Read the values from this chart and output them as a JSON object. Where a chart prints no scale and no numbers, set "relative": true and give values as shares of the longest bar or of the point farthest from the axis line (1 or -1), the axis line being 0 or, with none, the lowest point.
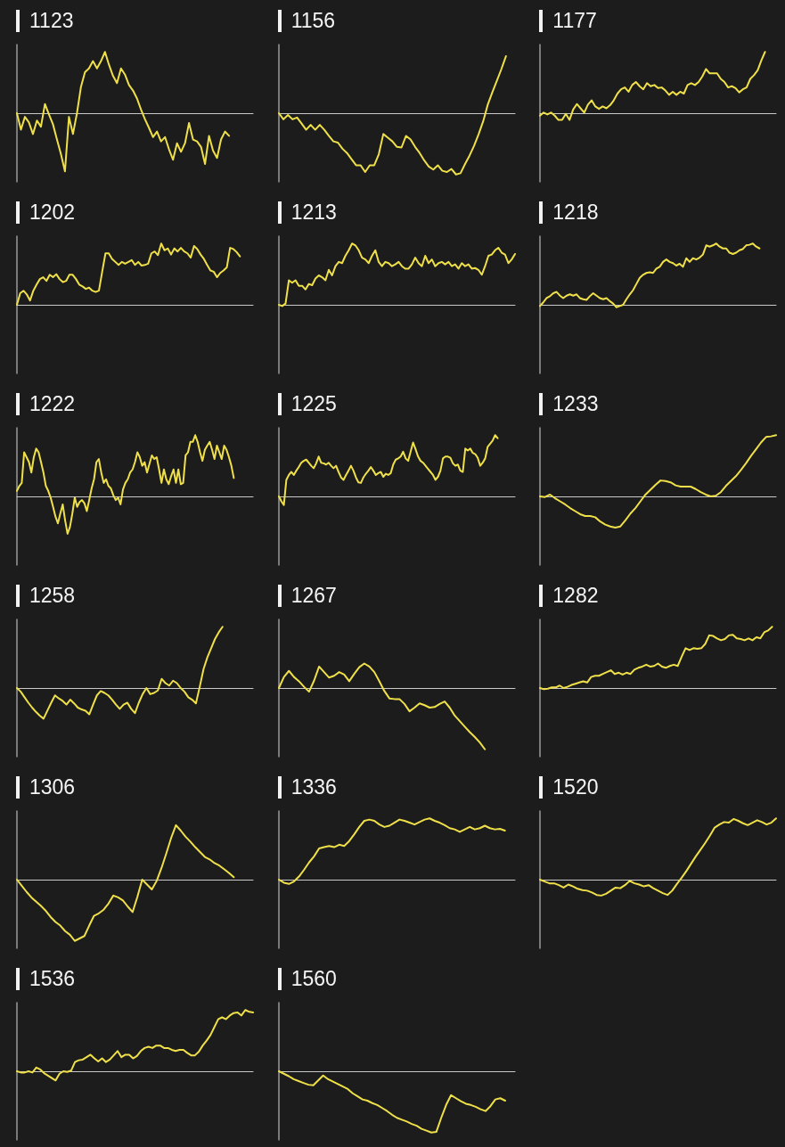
{
  "chart_data": [
    {
      "type": "line",
      "title": "1123",
      "relative": true,
      "color": "#efe04a",
      "categories": [
        null,
        null,
        null,
        null,
        null,
        null,
        null,
        null,
        null,
        null,
        null,
        null,
        null,
        null,
        null,
        null,
        null,
        null,
        null,
        null,
        null,
        null,
        null,
        null,
        null,
        null,
        null,
        null,
        null,
        null,
        null,
        null,
        null,
        null,
        null,
        null,
        null,
        null,
        null,
        null,
        null,
        null,
        null,
        null,
        null,
        null,
        null,
        null,
        null,
        null,
        null,
        null,
        null,
        null,
        null,
        null,
        null,
        null,
        null,
        null
      ],
      "values": [
        0,
        -0.27,
        -0.06,
        -0.15,
        -0.34,
        -0.12,
        -0.22,
        0.15,
        -0.02,
        -0.18,
        -0.43,
        -0.67,
        -0.95,
        -0.06,
        -0.34,
        0,
        0.43,
        0.67,
        0.73,
        0.85,
        0.73,
        0.85,
        1,
        0.79,
        0.61,
        0.49,
        0.73,
        0.63,
        0.46,
        0.37,
        0.24,
        0.06,
        -0.1,
        -0.24,
        -0.39,
        -0.3,
        -0.46,
        -0.39,
        -0.59,
        -0.76,
        -0.49,
        -0.63,
        -0.49,
        -0.16,
        -0.43,
        -0.46,
        -0.55,
        -0.83,
        -0.37,
        -0.61,
        -0.73,
        -0.43,
        -0.3,
        -0.37,
        null,
        null,
        null,
        null,
        null,
        null
      ]
    },
    {
      "type": "line",
      "title": "1156",
      "relative": true,
      "color": "#efe04a",
      "categories": [
        null,
        null,
        null,
        null,
        null,
        null,
        null,
        null,
        null,
        null,
        null,
        null,
        null,
        null,
        null,
        null,
        null,
        null,
        null,
        null,
        null,
        null,
        null,
        null,
        null,
        null,
        null,
        null,
        null,
        null,
        null,
        null,
        null,
        null,
        null,
        null,
        null,
        null,
        null,
        null,
        null,
        null,
        null,
        null,
        null,
        null,
        null,
        null,
        null,
        null,
        null,
        null,
        null
      ],
      "values": [
        0,
        -0.1,
        -0.03,
        -0.1,
        -0.07,
        -0.17,
        -0.27,
        -0.19,
        -0.27,
        -0.19,
        -0.27,
        -0.37,
        -0.46,
        -0.48,
        -0.58,
        -0.65,
        -0.75,
        -0.85,
        -0.85,
        -0.96,
        -0.85,
        -0.85,
        -0.67,
        -0.34,
        -0.4,
        -0.46,
        -0.55,
        -0.56,
        -0.37,
        -0.43,
        -0.55,
        -0.65,
        -0.77,
        -0.87,
        -0.92,
        -0.85,
        -0.94,
        -0.96,
        -0.91,
        -1,
        -0.98,
        -0.83,
        -0.69,
        -0.53,
        -0.34,
        -0.13,
        0.14,
        0.34,
        0.53,
        0.72,
        0.93,
        null,
        null
      ]
    },
    {
      "type": "line",
      "title": "1177",
      "relative": true,
      "color": "#efe04a",
      "categories": [
        null,
        null,
        null,
        null,
        null,
        null,
        null,
        null,
        null,
        null,
        null,
        null,
        null,
        null,
        null,
        null,
        null,
        null,
        null,
        null,
        null,
        null,
        null,
        null,
        null,
        null,
        null,
        null,
        null,
        null,
        null,
        null,
        null,
        null,
        null,
        null,
        null,
        null,
        null,
        null,
        null,
        null,
        null,
        null,
        null,
        null,
        null,
        null,
        null,
        null,
        null,
        null,
        null,
        null,
        null,
        null,
        null,
        null,
        null,
        null,
        null,
        null,
        null,
        null,
        null
      ],
      "values": [
        -0.04,
        0.01,
        -0.02,
        0.01,
        -0.04,
        -0.11,
        -0.11,
        -0.01,
        -0.11,
        0.06,
        0.15,
        0.08,
        0.01,
        0.14,
        0.21,
        0.11,
        0.07,
        0.11,
        0.08,
        0.13,
        0.21,
        0.32,
        0.39,
        0.42,
        0.35,
        0.46,
        0.51,
        0.44,
        0.39,
        0.49,
        0.44,
        0.46,
        0.41,
        0.42,
        0.37,
        0.3,
        0.35,
        0.3,
        0.35,
        0.32,
        0.46,
        0.49,
        0.46,
        0.51,
        0.6,
        0.72,
        0.65,
        0.65,
        0.65,
        0.56,
        0.51,
        0.42,
        0.44,
        0.41,
        0.34,
        0.39,
        0.42,
        0.56,
        0.62,
        0.7,
        0.86,
        1,
        null,
        null,
        null
      ]
    },
    {
      "type": "line",
      "title": "1202",
      "relative": true,
      "color": "#efe04a",
      "categories": [
        null,
        null,
        null,
        null,
        null,
        null,
        null,
        null,
        null,
        null,
        null,
        null,
        null,
        null,
        null,
        null,
        null,
        null,
        null,
        null,
        null,
        null,
        null,
        null,
        null,
        null,
        null,
        null,
        null,
        null,
        null,
        null,
        null,
        null,
        null,
        null,
        null,
        null,
        null,
        null,
        null,
        null,
        null,
        null,
        null,
        null,
        null,
        null,
        null,
        null,
        null,
        null,
        null,
        null,
        null,
        null,
        null,
        null,
        null,
        null,
        null,
        null,
        null,
        null,
        null,
        null,
        null,
        null,
        null,
        null,
        null,
        null,
        null
      ],
      "values": [
        0,
        0.19,
        0.23,
        0.17,
        0.07,
        0.23,
        0.33,
        0.42,
        0.45,
        0.39,
        0.49,
        0.45,
        0.5,
        0.42,
        0.37,
        0.39,
        0.49,
        0.49,
        0.42,
        0.33,
        0.3,
        0.26,
        0.28,
        0.23,
        0.21,
        0.23,
        0.54,
        0.84,
        0.84,
        0.75,
        0.7,
        0.65,
        0.7,
        0.67,
        0.7,
        0.73,
        0.65,
        0.7,
        0.64,
        0.65,
        0.67,
        0.84,
        0.87,
        0.81,
        1,
        0.89,
        0.92,
        0.82,
        0.92,
        0.87,
        0.93,
        0.87,
        0.84,
        0.77,
        0.96,
        0.91,
        0.82,
        0.75,
        0.65,
        0.56,
        0.54,
        0.45,
        0.52,
        0.56,
        0.61,
        0.93,
        0.91,
        0.86,
        0.79,
        null,
        null,
        null,
        null
      ]
    },
    {
      "type": "line",
      "title": "1213",
      "relative": true,
      "color": "#efe04a",
      "categories": [
        null,
        null,
        null,
        null,
        null,
        null,
        null,
        null,
        null,
        null,
        null,
        null,
        null,
        null,
        null,
        null,
        null,
        null,
        null,
        null,
        null,
        null,
        null,
        null,
        null,
        null,
        null,
        null,
        null,
        null,
        null,
        null,
        null,
        null,
        null,
        null,
        null,
        null,
        null,
        null,
        null,
        null,
        null,
        null,
        null,
        null,
        null,
        null,
        null,
        null,
        null,
        null,
        null,
        null,
        null,
        null,
        null,
        null,
        null,
        null,
        null,
        null,
        null,
        null,
        null,
        null,
        null,
        null,
        null,
        null,
        null,
        null
      ],
      "values": [
        0,
        -0.02,
        0.02,
        0.4,
        0.36,
        0.4,
        0.31,
        0.31,
        0.25,
        0.34,
        0.32,
        0.43,
        0.48,
        0.45,
        0.4,
        0.57,
        0.48,
        0.63,
        0.7,
        0.68,
        0.8,
        0.89,
        1,
        0.97,
        0.89,
        0.77,
        0.74,
        0.68,
        0.8,
        0.89,
        0.7,
        0.63,
        0.7,
        0.68,
        0.63,
        0.66,
        0.7,
        0.63,
        0.59,
        0.59,
        0.66,
        0.77,
        0.68,
        0.63,
        0.8,
        0.68,
        0.74,
        0.63,
        0.68,
        0.7,
        0.66,
        0.7,
        0.63,
        0.66,
        0.59,
        0.68,
        0.63,
        0.66,
        0.59,
        0.6,
        0.57,
        0.49,
        0.63,
        0.8,
        0.82,
        0.89,
        0.93,
        0.85,
        0.82,
        0.68,
        0.74,
        0.83
      ]
    },
    {
      "type": "line",
      "title": "1218",
      "relative": true,
      "color": "#efe04a",
      "categories": [
        null,
        null,
        null,
        null,
        null,
        null,
        null,
        null,
        null,
        null,
        null,
        null,
        null,
        null,
        null,
        null,
        null,
        null,
        null,
        null,
        null,
        null,
        null,
        null,
        null,
        null,
        null,
        null,
        null,
        null,
        null,
        null,
        null,
        null,
        null,
        null,
        null,
        null,
        null,
        null,
        null,
        null,
        null,
        null,
        null,
        null,
        null,
        null,
        null,
        null,
        null,
        null,
        null,
        null,
        null,
        null,
        null,
        null,
        null,
        null,
        null,
        null,
        null,
        null,
        null,
        null,
        null,
        null,
        null,
        null,
        null,
        null
      ],
      "values": [
        -0.02,
        0.04,
        0.11,
        0.14,
        0.19,
        0.21,
        0.15,
        0.11,
        0.15,
        0.17,
        0.15,
        0.17,
        0.11,
        0.09,
        0.08,
        0.14,
        0.19,
        0.15,
        0.11,
        0.09,
        0.11,
        0.06,
        0.02,
        -0.04,
        -0.02,
        0,
        0.09,
        0.17,
        0.24,
        0.34,
        0.44,
        0.49,
        0.52,
        0.53,
        0.52,
        0.59,
        0.62,
        0.7,
        0.74,
        0.7,
        0.68,
        0.64,
        0.67,
        0.62,
        0.76,
        0.7,
        0.76,
        0.74,
        0.77,
        0.82,
        0.97,
        0.95,
        0.97,
        1,
        0.95,
        0.92,
        0.92,
        0.85,
        0.83,
        0.85,
        0.89,
        0.91,
        0.97,
        0.98,
        1,
        0.95,
        0.92,
        null,
        null,
        null,
        null,
        null
      ]
    },
    {
      "type": "line",
      "title": "1222",
      "relative": true,
      "color": "#efe04a",
      "categories": [
        null,
        null,
        null,
        null,
        null,
        null,
        null,
        null,
        null,
        null,
        null,
        null,
        null,
        null,
        null,
        null,
        null,
        null,
        null,
        null,
        null,
        null,
        null,
        null,
        null,
        null,
        null,
        null,
        null,
        null,
        null,
        null,
        null,
        null,
        null,
        null,
        null,
        null,
        null,
        null,
        null,
        null,
        null,
        null,
        null,
        null,
        null,
        null,
        null,
        null,
        null,
        null,
        null,
        null,
        null,
        null,
        null,
        null,
        null,
        null,
        null,
        null,
        null,
        null,
        null,
        null,
        null,
        null,
        null,
        null,
        null,
        null,
        null,
        null,
        null,
        null,
        null,
        null,
        null,
        null,
        null,
        null,
        null,
        null,
        null,
        null,
        null,
        null,
        null,
        null,
        null,
        null,
        null,
        null,
        null,
        null,
        null,
        null,
        null
      ],
      "values": [
        0.09,
        0.17,
        0.22,
        0.72,
        0.64,
        0.56,
        0.39,
        0.64,
        0.78,
        0.72,
        0.56,
        0.39,
        0.17,
        0.09,
        -0.02,
        -0.17,
        -0.33,
        -0.44,
        -0.28,
        -0.13,
        -0.39,
        -0.61,
        -0.5,
        -0.28,
        -0.02,
        -0.17,
        -0.09,
        -0.06,
        -0.11,
        -0.24,
        -0.06,
        0.13,
        0.28,
        0.56,
        0.61,
        0.39,
        0.22,
        0.28,
        0.17,
        0.13,
        0.02,
        -0.06,
        -0.02,
        -0.13,
        0.11,
        0.22,
        0.28,
        0.39,
        0.44,
        0.56,
        0.72,
        0.64,
        0.5,
        0.56,
        0.39,
        0.53,
        0.67,
        0.61,
        0.64,
        0.44,
        0.22,
        0.44,
        0.28,
        0.2,
        0.33,
        0.44,
        0.22,
        0.44,
        0.2,
        0.22,
        0.67,
        0.72,
        0.89,
        0.89,
        1,
        0.89,
        0.72,
        0.58,
        0.76,
        0.83,
        0.89,
        0.76,
        0.61,
        0.83,
        0.72,
        0.61,
        0.83,
        0.76,
        0.64,
        0.5,
        0.3,
        null,
        null,
        null,
        null,
        null,
        null,
        null,
        null
      ]
    },
    {
      "type": "line",
      "title": "1225",
      "relative": true,
      "color": "#efe04a",
      "categories": [
        null,
        null,
        null,
        null,
        null,
        null,
        null,
        null,
        null,
        null,
        null,
        null,
        null,
        null,
        null,
        null,
        null,
        null,
        null,
        null,
        null,
        null,
        null,
        null,
        null,
        null,
        null,
        null,
        null,
        null,
        null,
        null,
        null,
        null,
        null,
        null,
        null,
        null,
        null,
        null,
        null,
        null,
        null,
        null,
        null,
        null,
        null,
        null,
        null,
        null,
        null,
        null,
        null,
        null,
        null,
        null,
        null,
        null,
        null,
        null,
        null,
        null,
        null,
        null,
        null,
        null,
        null,
        null,
        null,
        null,
        null,
        null,
        null,
        null,
        null,
        null,
        null,
        null,
        null,
        null,
        null,
        null,
        null,
        null,
        null,
        null,
        null,
        null,
        null,
        null,
        null,
        null,
        null,
        null,
        null,
        null
      ],
      "values": [
        0,
        -0.08,
        -0.14,
        0.27,
        0.35,
        0.4,
        0.35,
        0.42,
        0.48,
        0.55,
        0.58,
        0.6,
        0.55,
        0.5,
        0.46,
        0.54,
        0.65,
        0.55,
        0.54,
        0.52,
        0.55,
        0.5,
        0.46,
        0.5,
        0.4,
        0.31,
        0.27,
        0.35,
        0.42,
        0.5,
        0.42,
        0.31,
        0.23,
        0.22,
        0.31,
        0.37,
        0.42,
        0.48,
        0.42,
        0.35,
        0.38,
        0.4,
        0.32,
        0.37,
        0.35,
        0.38,
        0.52,
        0.6,
        0.62,
        0.65,
        0.73,
        0.62,
        0.58,
        0.73,
        0.88,
        0.77,
        0.65,
        0.58,
        0.55,
        0.5,
        0.45,
        0.4,
        0.35,
        0.27,
        0.32,
        0.42,
        0.62,
        0.65,
        0.65,
        0.63,
        0.54,
        0.5,
        0.52,
        0.42,
        0.4,
        0.78,
        0.75,
        0.78,
        0.71,
        0.69,
        0.63,
        0.5,
        0.55,
        0.62,
        0.81,
        0.86,
        0.91,
        1,
        0.95,
        null,
        null,
        null,
        null,
        null,
        null,
        null
      ]
    },
    {
      "type": "line",
      "title": "1233",
      "relative": true,
      "color": "#efe04a",
      "categories": [
        null,
        null,
        null,
        null,
        null,
        null,
        null,
        null,
        null,
        null,
        null,
        null,
        null,
        null,
        null,
        null,
        null,
        null,
        null,
        null,
        null,
        null,
        null,
        null,
        null,
        null,
        null,
        null,
        null,
        null,
        null,
        null,
        null,
        null,
        null,
        null,
        null,
        null,
        null,
        null,
        null,
        null,
        null,
        null,
        null,
        null,
        null,
        null
      ],
      "values": [
        0,
        -0.01,
        0.03,
        -0.03,
        -0.08,
        -0.13,
        -0.19,
        -0.24,
        -0.29,
        -0.32,
        -0.32,
        -0.34,
        -0.41,
        -0.46,
        -0.49,
        -0.51,
        -0.49,
        -0.39,
        -0.28,
        -0.19,
        -0.08,
        0.03,
        0.11,
        0.19,
        0.26,
        0.25,
        0.23,
        0.18,
        0.16,
        0.16,
        0.16,
        0.12,
        0.07,
        0.03,
        0,
        0.01,
        0.07,
        0.17,
        0.25,
        0.33,
        0.43,
        0.54,
        0.66,
        0.77,
        0.88,
        0.97,
        0.98,
        1
      ]
    },
    {
      "type": "line",
      "title": "1258",
      "relative": true,
      "color": "#efe04a",
      "categories": [
        null,
        null,
        null,
        null,
        null,
        null,
        null,
        null,
        null,
        null,
        null,
        null,
        null,
        null,
        null,
        null,
        null,
        null,
        null,
        null,
        null,
        null,
        null,
        null,
        null,
        null,
        null,
        null,
        null,
        null,
        null,
        null,
        null,
        null,
        null,
        null,
        null,
        null,
        null,
        null,
        null,
        null,
        null,
        null,
        null,
        null,
        null,
        null,
        null,
        null,
        null,
        null,
        null,
        null,
        null,
        null,
        null,
        null,
        null,
        null,
        null,
        null,
        null
      ],
      "values": [
        0,
        -0.06,
        -0.15,
        -0.24,
        -0.32,
        -0.39,
        -0.45,
        -0.5,
        -0.37,
        -0.24,
        -0.12,
        -0.17,
        -0.21,
        -0.27,
        -0.19,
        -0.25,
        -0.32,
        -0.35,
        -0.37,
        -0.43,
        -0.27,
        -0.12,
        -0.05,
        -0.08,
        -0.12,
        -0.19,
        -0.27,
        -0.34,
        -0.27,
        -0.24,
        -0.34,
        -0.41,
        -0.24,
        -0.1,
        0,
        -0.1,
        -0.08,
        -0.04,
        0.15,
        0.08,
        0.04,
        0.12,
        0.08,
        0,
        -0.06,
        -0.15,
        -0.19,
        -0.25,
        0.02,
        0.31,
        0.5,
        0.65,
        0.8,
        0.91,
        1,
        null,
        null,
        null,
        null,
        null,
        null,
        null,
        null
      ]
    },
    {
      "type": "line",
      "title": "1267",
      "relative": true,
      "color": "#efe04a",
      "categories": [
        null,
        null,
        null,
        null,
        null,
        null,
        null,
        null,
        null,
        null,
        null,
        null,
        null,
        null,
        null,
        null,
        null,
        null,
        null,
        null,
        null,
        null,
        null,
        null,
        null,
        null,
        null,
        null,
        null,
        null,
        null,
        null,
        null,
        null,
        null,
        null,
        null,
        null,
        null,
        null,
        null,
        null,
        null,
        null,
        null,
        null,
        null,
        null
      ],
      "values": [
        0,
        0.18,
        0.28,
        0.18,
        0.11,
        0.02,
        -0.06,
        0.12,
        0.35,
        0.26,
        0.17,
        0.2,
        0.26,
        0.22,
        0.11,
        0.23,
        0.34,
        0.4,
        0.35,
        0.26,
        0.11,
        -0.05,
        -0.17,
        -0.18,
        -0.18,
        -0.26,
        -0.38,
        -0.32,
        -0.25,
        -0.28,
        -0.32,
        -0.31,
        -0.26,
        -0.22,
        -0.32,
        -0.45,
        -0.54,
        -0.63,
        -0.72,
        -0.8,
        -0.89,
        -1,
        null,
        null,
        null,
        null,
        null,
        null
      ]
    },
    {
      "type": "line",
      "title": "1282",
      "relative": true,
      "color": "#efe04a",
      "categories": [
        null,
        null,
        null,
        null,
        null,
        null,
        null,
        null,
        null,
        null,
        null,
        null,
        null,
        null,
        null,
        null,
        null,
        null,
        null,
        null,
        null,
        null,
        null,
        null,
        null,
        null,
        null,
        null,
        null,
        null,
        null,
        null,
        null,
        null,
        null,
        null,
        null,
        null,
        null,
        null,
        null,
        null,
        null,
        null,
        null,
        null,
        null,
        null,
        null,
        null,
        null,
        null,
        null,
        null,
        null,
        null,
        null,
        null,
        null,
        null,
        null
      ],
      "values": [
        0,
        -0.02,
        -0.01,
        0.01,
        0.01,
        0.04,
        0,
        0.02,
        0.05,
        0.07,
        0.09,
        0.11,
        0.09,
        0.18,
        0.2,
        0.2,
        0.23,
        0.26,
        0.29,
        0.23,
        0.25,
        0.22,
        0.25,
        0.23,
        0.3,
        0.33,
        0.35,
        0.38,
        0.35,
        0.36,
        0.4,
        0.35,
        0.33,
        0.36,
        0.38,
        0.36,
        0.51,
        0.65,
        0.62,
        0.65,
        0.64,
        0.65,
        0.72,
        0.86,
        0.85,
        0.81,
        0.78,
        0.8,
        0.86,
        0.87,
        0.81,
        0.8,
        0.78,
        0.81,
        0.78,
        0.83,
        0.81,
        0.91,
        0.94,
        1,
        null
      ]
    },
    {
      "type": "line",
      "title": "1306",
      "relative": true,
      "color": "#efe04a",
      "categories": [
        null,
        null,
        null,
        null,
        null,
        null,
        null,
        null,
        null,
        null,
        null,
        null,
        null,
        null,
        null,
        null,
        null,
        null,
        null,
        null,
        null,
        null,
        null,
        null,
        null,
        null,
        null,
        null,
        null,
        null,
        null,
        null,
        null,
        null,
        null,
        null,
        null,
        null,
        null,
        null,
        null,
        null,
        null,
        null,
        null,
        null,
        null,
        null,
        null,
        null
      ],
      "values": [
        0,
        -0.1,
        -0.2,
        -0.29,
        -0.36,
        -0.43,
        -0.51,
        -0.61,
        -0.69,
        -0.75,
        -0.84,
        -0.9,
        -1,
        -0.96,
        -0.92,
        -0.75,
        -0.59,
        -0.55,
        -0.49,
        -0.39,
        -0.26,
        -0.29,
        -0.34,
        -0.44,
        -0.53,
        -0.28,
        0,
        -0.08,
        -0.16,
        -0.02,
        0.19,
        0.43,
        0.68,
        0.89,
        0.8,
        0.7,
        0.62,
        0.53,
        0.45,
        0.37,
        0.33,
        0.27,
        0.23,
        0.17,
        0.11,
        0.04,
        null,
        null,
        null,
        null
      ]
    },
    {
      "type": "line",
      "title": "1336",
      "relative": true,
      "color": "#efe04a",
      "categories": [
        null,
        null,
        null,
        null,
        null,
        null,
        null,
        null,
        null,
        null,
        null,
        null,
        null,
        null,
        null,
        null,
        null,
        null,
        null,
        null,
        null,
        null,
        null,
        null,
        null,
        null,
        null,
        null,
        null,
        null,
        null,
        null,
        null,
        null,
        null,
        null,
        null,
        null,
        null,
        null,
        null,
        null,
        null,
        null,
        null,
        null,
        null,
        null
      ],
      "values": [
        0,
        -0.05,
        -0.07,
        -0.03,
        0.05,
        0.16,
        0.28,
        0.38,
        0.51,
        0.53,
        0.55,
        0.53,
        0.57,
        0.55,
        0.63,
        0.74,
        0.86,
        0.96,
        0.98,
        0.96,
        0.9,
        0.86,
        0.88,
        0.93,
        0.98,
        0.96,
        0.93,
        0.9,
        0.94,
        0.98,
        1,
        0.96,
        0.93,
        0.89,
        0.84,
        0.82,
        0.78,
        0.82,
        0.86,
        0.82,
        0.84,
        0.88,
        0.84,
        0.82,
        0.83,
        0.8,
        null,
        null
      ]
    },
    {
      "type": "line",
      "title": "1520",
      "relative": true,
      "color": "#efe04a",
      "categories": [
        null,
        null,
        null,
        null,
        null,
        null,
        null,
        null,
        null,
        null,
        null,
        null,
        null,
        null,
        null,
        null,
        null,
        null,
        null,
        null,
        null,
        null,
        null,
        null,
        null,
        null,
        null,
        null,
        null,
        null,
        null,
        null,
        null,
        null,
        null,
        null,
        null,
        null,
        null,
        null,
        null,
        null,
        null,
        null,
        null,
        null,
        null,
        null,
        null,
        null,
        null
      ],
      "values": [
        0,
        -0.03,
        -0.06,
        -0.06,
        -0.09,
        -0.13,
        -0.08,
        -0.11,
        -0.15,
        -0.17,
        -0.18,
        -0.21,
        -0.25,
        -0.26,
        -0.23,
        -0.18,
        -0.13,
        -0.14,
        -0.09,
        -0.02,
        -0.06,
        -0.08,
        -0.11,
        -0.09,
        -0.14,
        -0.18,
        -0.22,
        -0.25,
        -0.18,
        -0.07,
        0.03,
        0.14,
        0.26,
        0.38,
        0.49,
        0.6,
        0.72,
        0.85,
        0.9,
        0.94,
        0.93,
        0.99,
        0.96,
        0.92,
        0.89,
        0.93,
        0.97,
        0.94,
        0.9,
        0.93,
        1
      ]
    },
    {
      "type": "line",
      "title": "1536",
      "relative": true,
      "color": "#efe04a",
      "categories": [
        null,
        null,
        null,
        null,
        null,
        null,
        null,
        null,
        null,
        null,
        null,
        null,
        null,
        null,
        null,
        null,
        null,
        null,
        null,
        null,
        null,
        null,
        null,
        null,
        null,
        null,
        null,
        null,
        null,
        null,
        null,
        null,
        null,
        null,
        null,
        null,
        null,
        null,
        null,
        null,
        null,
        null,
        null,
        null,
        null,
        null,
        null,
        null,
        null,
        null,
        null,
        null,
        null,
        null,
        null,
        null,
        null,
        null,
        null,
        null,
        null,
        null
      ],
      "values": [
        0,
        -0.02,
        -0.02,
        0,
        -0.02,
        0.06,
        0.03,
        -0.03,
        -0.07,
        -0.11,
        -0.15,
        -0.04,
        0,
        -0.01,
        0.01,
        0.15,
        0.18,
        0.19,
        0.23,
        0.27,
        0.21,
        0.16,
        0.21,
        0.15,
        0.19,
        0.26,
        0.33,
        0.23,
        0.27,
        0.27,
        0.21,
        0.25,
        0.33,
        0.38,
        0.4,
        0.38,
        0.42,
        0.42,
        0.38,
        0.38,
        0.35,
        0.33,
        0.35,
        0.35,
        0.3,
        0.26,
        0.26,
        0.32,
        0.42,
        0.5,
        0.59,
        0.72,
        0.85,
        0.88,
        0.85,
        0.91,
        0.95,
        0.96,
        0.91,
        1,
        0.97,
        0.96
      ]
    },
    {
      "type": "line",
      "title": "1560",
      "relative": true,
      "color": "#efe04a",
      "categories": [
        null,
        null,
        null,
        null,
        null,
        null,
        null,
        null,
        null,
        null,
        null,
        null,
        null,
        null,
        null,
        null,
        null,
        null,
        null,
        null,
        null,
        null,
        null,
        null,
        null,
        null,
        null,
        null,
        null,
        null,
        null,
        null,
        null,
        null,
        null,
        null,
        null,
        null,
        null,
        null,
        null,
        null,
        null,
        null,
        null,
        null,
        null,
        null,
        null
      ],
      "values": [
        0,
        -0.04,
        -0.08,
        -0.13,
        -0.16,
        -0.19,
        -0.22,
        -0.23,
        -0.15,
        -0.07,
        -0.13,
        -0.17,
        -0.21,
        -0.25,
        -0.29,
        -0.36,
        -0.41,
        -0.46,
        -0.48,
        -0.52,
        -0.55,
        -0.6,
        -0.65,
        -0.71,
        -0.76,
        -0.79,
        -0.82,
        -0.86,
        -0.89,
        -0.94,
        -0.97,
        -1,
        -0.99,
        -0.76,
        -0.55,
        -0.39,
        -0.44,
        -0.49,
        -0.53,
        -0.55,
        -0.58,
        -0.62,
        -0.65,
        -0.57,
        -0.46,
        -0.44,
        -0.48,
        null,
        null
      ]
    }
  ]
}
